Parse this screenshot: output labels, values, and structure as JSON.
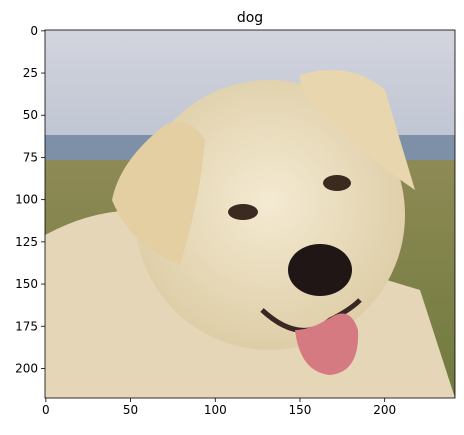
{
  "chart_data": {
    "type": "image",
    "title": "dog",
    "xlim": [
      -0.5,
      241.5
    ],
    "ylim": [
      217.5,
      -0.5
    ],
    "xticks": [
      0,
      50,
      100,
      150,
      200
    ],
    "yticks": [
      0,
      25,
      50,
      75,
      100,
      125,
      150,
      175,
      200
    ]
  }
}
